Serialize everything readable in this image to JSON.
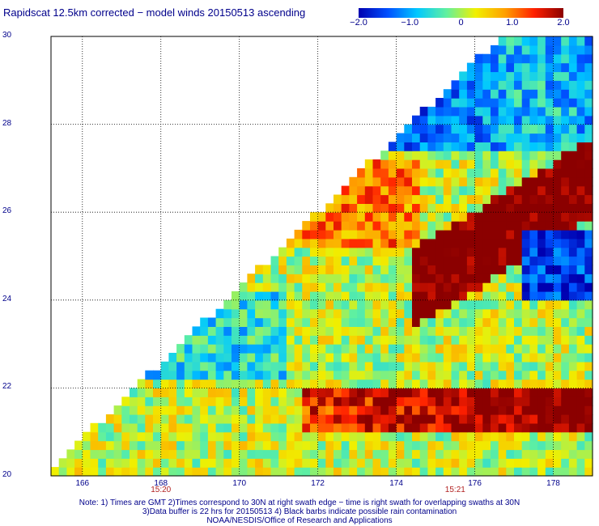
{
  "title": "Rapidscat 12.5km corrected − model winds 20150513 ascending",
  "colorbar": {
    "labels": [
      "−2.0",
      "−1.0",
      "0",
      "1.0",
      "2.0"
    ],
    "values": [
      -2.0,
      -1.0,
      0,
      1.0,
      2.0
    ],
    "colors": [
      "#0000b0",
      "#0050ff",
      "#00c8ff",
      "#60f0a0",
      "#f0f000",
      "#ffa000",
      "#ff2000",
      "#8b0000"
    ]
  },
  "chart_data": {
    "type": "heatmap",
    "title": "Rapidscat 12.5km corrected − model winds 20150513 ascending",
    "xlabel": "",
    "ylabel": "",
    "x_ticks": [
      "166",
      "168",
      "170",
      "172",
      "174",
      "176",
      "178"
    ],
    "y_ticks": [
      "20",
      "22",
      "24",
      "26",
      "28",
      "30"
    ],
    "xlim": [
      165.2,
      179.0
    ],
    "ylim": [
      20,
      30
    ],
    "value_range": [
      -2.0,
      2.0
    ],
    "grid": true,
    "time_labels": [
      {
        "lon": 168,
        "text": "15:20"
      },
      {
        "lon": 175.5,
        "text": "15:21"
      }
    ]
  },
  "notes": [
    "Note: 1) Times are GMT 2)Times correspond to 30N at right swath edge − time is right swath for overlapping swaths at 30N",
    "3)Data buffer is 22 hrs for 20150513 4) Black barbs indicate possible rain contamination",
    "NOAA/NESDIS/Office of Research and Applications"
  ]
}
